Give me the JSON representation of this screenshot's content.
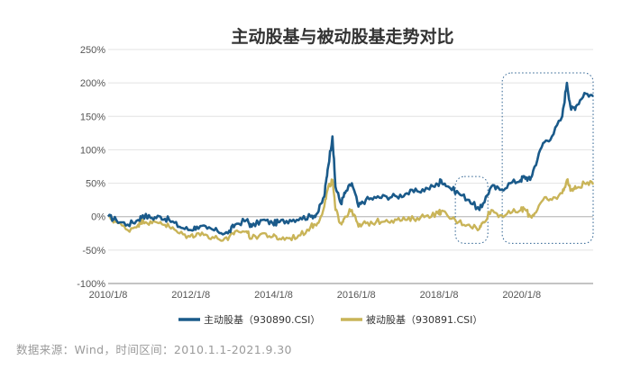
{
  "source_note": "数据来源：Wind，时间区间：2010.1.1-2021.9.30",
  "chart_data": {
    "type": "line",
    "title": "主动股基与被动股基走势对比",
    "xlabel": "",
    "ylabel": "",
    "x_range": [
      "2010-01-08",
      "2021-09-30"
    ],
    "x_ticks": [
      {
        "date": "2010-01-08",
        "label": "2010/1/8"
      },
      {
        "date": "2012-01-08",
        "label": "2012/1/8"
      },
      {
        "date": "2014-01-08",
        "label": "2014/1/8"
      },
      {
        "date": "2016-01-08",
        "label": "2016/1/8"
      },
      {
        "date": "2018-01-08",
        "label": "2018/1/8"
      },
      {
        "date": "2020-01-08",
        "label": "2020/1/8"
      }
    ],
    "y_range": [
      -100,
      250
    ],
    "y_ticks": [
      -100,
      -50,
      0,
      50,
      100,
      150,
      200,
      250
    ],
    "y_unit": "%",
    "gridlines": true,
    "legend_position": "bottom",
    "series": [
      {
        "name": "主动股基（930890.CSI）",
        "color": "#1a5a8a",
        "points": [
          [
            "2010-01-08",
            0
          ],
          [
            "2010-03-20",
            -5
          ],
          [
            "2010-06-30",
            -12
          ],
          [
            "2010-09-30",
            -5
          ],
          [
            "2010-11-10",
            2
          ],
          [
            "2011-01-30",
            -2
          ],
          [
            "2011-04-15",
            0
          ],
          [
            "2011-07-01",
            -5
          ],
          [
            "2011-09-30",
            -15
          ],
          [
            "2011-12-31",
            -20
          ],
          [
            "2012-03-01",
            -15
          ],
          [
            "2012-06-01",
            -18
          ],
          [
            "2012-09-01",
            -22
          ],
          [
            "2012-12-01",
            -25
          ],
          [
            "2013-02-01",
            -12
          ],
          [
            "2013-05-15",
            -5
          ],
          [
            "2013-06-28",
            -15
          ],
          [
            "2013-10-01",
            -5
          ],
          [
            "2013-12-31",
            -10
          ],
          [
            "2014-03-01",
            -8
          ],
          [
            "2014-06-01",
            -5
          ],
          [
            "2014-09-01",
            -2
          ],
          [
            "2014-12-01",
            0
          ],
          [
            "2015-01-30",
            5
          ],
          [
            "2015-03-31",
            30
          ],
          [
            "2015-04-30",
            70
          ],
          [
            "2015-06-12",
            120
          ],
          [
            "2015-07-08",
            45
          ],
          [
            "2015-08-25",
            20
          ],
          [
            "2015-10-01",
            35
          ],
          [
            "2015-11-30",
            50
          ],
          [
            "2016-01-28",
            15
          ],
          [
            "2016-04-01",
            25
          ],
          [
            "2016-07-01",
            28
          ],
          [
            "2016-10-01",
            30
          ],
          [
            "2016-12-31",
            30
          ],
          [
            "2017-03-31",
            35
          ],
          [
            "2017-06-30",
            38
          ],
          [
            "2017-09-30",
            42
          ],
          [
            "2017-12-31",
            48
          ],
          [
            "2018-01-26",
            55
          ],
          [
            "2018-03-31",
            45
          ],
          [
            "2018-06-30",
            35
          ],
          [
            "2018-09-30",
            25
          ],
          [
            "2018-12-31",
            10
          ],
          [
            "2019-02-01",
            20
          ],
          [
            "2019-04-15",
            45
          ],
          [
            "2019-06-30",
            40
          ],
          [
            "2019-09-30",
            50
          ],
          [
            "2019-12-31",
            55
          ],
          [
            "2020-02-01",
            60
          ],
          [
            "2020-03-23",
            55
          ],
          [
            "2020-05-01",
            75
          ],
          [
            "2020-07-15",
            110
          ],
          [
            "2020-09-30",
            120
          ],
          [
            "2020-12-31",
            150
          ],
          [
            "2021-02-10",
            200
          ],
          [
            "2021-03-20",
            160
          ],
          [
            "2021-05-01",
            165
          ],
          [
            "2021-07-15",
            185
          ],
          [
            "2021-09-30",
            180
          ]
        ]
      },
      {
        "name": "被动股基（930891.CSI）",
        "color": "#c9b458",
        "points": [
          [
            "2010-01-08",
            0
          ],
          [
            "2010-03-20",
            -8
          ],
          [
            "2010-06-30",
            -20
          ],
          [
            "2010-09-30",
            -12
          ],
          [
            "2010-11-10",
            -5
          ],
          [
            "2011-01-30",
            -10
          ],
          [
            "2011-04-15",
            -8
          ],
          [
            "2011-07-01",
            -15
          ],
          [
            "2011-09-30",
            -25
          ],
          [
            "2011-12-31",
            -30
          ],
          [
            "2012-03-01",
            -25
          ],
          [
            "2012-06-01",
            -28
          ],
          [
            "2012-09-01",
            -33
          ],
          [
            "2012-12-01",
            -35
          ],
          [
            "2013-02-01",
            -22
          ],
          [
            "2013-05-15",
            -22
          ],
          [
            "2013-06-28",
            -33
          ],
          [
            "2013-10-01",
            -25
          ],
          [
            "2013-12-31",
            -30
          ],
          [
            "2014-03-01",
            -33
          ],
          [
            "2014-06-01",
            -32
          ],
          [
            "2014-09-01",
            -28
          ],
          [
            "2014-12-01",
            -15
          ],
          [
            "2015-01-30",
            -10
          ],
          [
            "2015-03-31",
            15
          ],
          [
            "2015-04-30",
            40
          ],
          [
            "2015-06-12",
            55
          ],
          [
            "2015-07-08",
            10
          ],
          [
            "2015-08-25",
            -10
          ],
          [
            "2015-10-01",
            0
          ],
          [
            "2015-11-30",
            10
          ],
          [
            "2016-01-28",
            -15
          ],
          [
            "2016-04-01",
            -10
          ],
          [
            "2016-07-01",
            -8
          ],
          [
            "2016-10-01",
            -5
          ],
          [
            "2016-12-31",
            -5
          ],
          [
            "2017-03-31",
            -5
          ],
          [
            "2017-06-30",
            -2
          ],
          [
            "2017-09-30",
            2
          ],
          [
            "2017-12-31",
            5
          ],
          [
            "2018-01-26",
            8
          ],
          [
            "2018-03-31",
            0
          ],
          [
            "2018-06-30",
            -8
          ],
          [
            "2018-09-30",
            -12
          ],
          [
            "2018-12-31",
            -18
          ],
          [
            "2019-02-01",
            -8
          ],
          [
            "2019-04-15",
            10
          ],
          [
            "2019-06-30",
            2
          ],
          [
            "2019-09-30",
            5
          ],
          [
            "2019-12-31",
            10
          ],
          [
            "2020-02-01",
            12
          ],
          [
            "2020-03-23",
            0
          ],
          [
            "2020-05-01",
            5
          ],
          [
            "2020-07-15",
            25
          ],
          [
            "2020-09-30",
            25
          ],
          [
            "2020-12-31",
            35
          ],
          [
            "2021-02-10",
            55
          ],
          [
            "2021-03-20",
            40
          ],
          [
            "2021-05-01",
            42
          ],
          [
            "2021-07-15",
            50
          ],
          [
            "2021-09-30",
            48
          ]
        ]
      }
    ],
    "highlight_boxes": [
      {
        "x_start": "2018-06-01",
        "x_end": "2019-03-15",
        "y_top": 60,
        "y_bottom": -40
      },
      {
        "x_start": "2019-07-20",
        "x_end": "2021-09-30",
        "y_top": 215,
        "y_bottom": -40
      }
    ]
  }
}
